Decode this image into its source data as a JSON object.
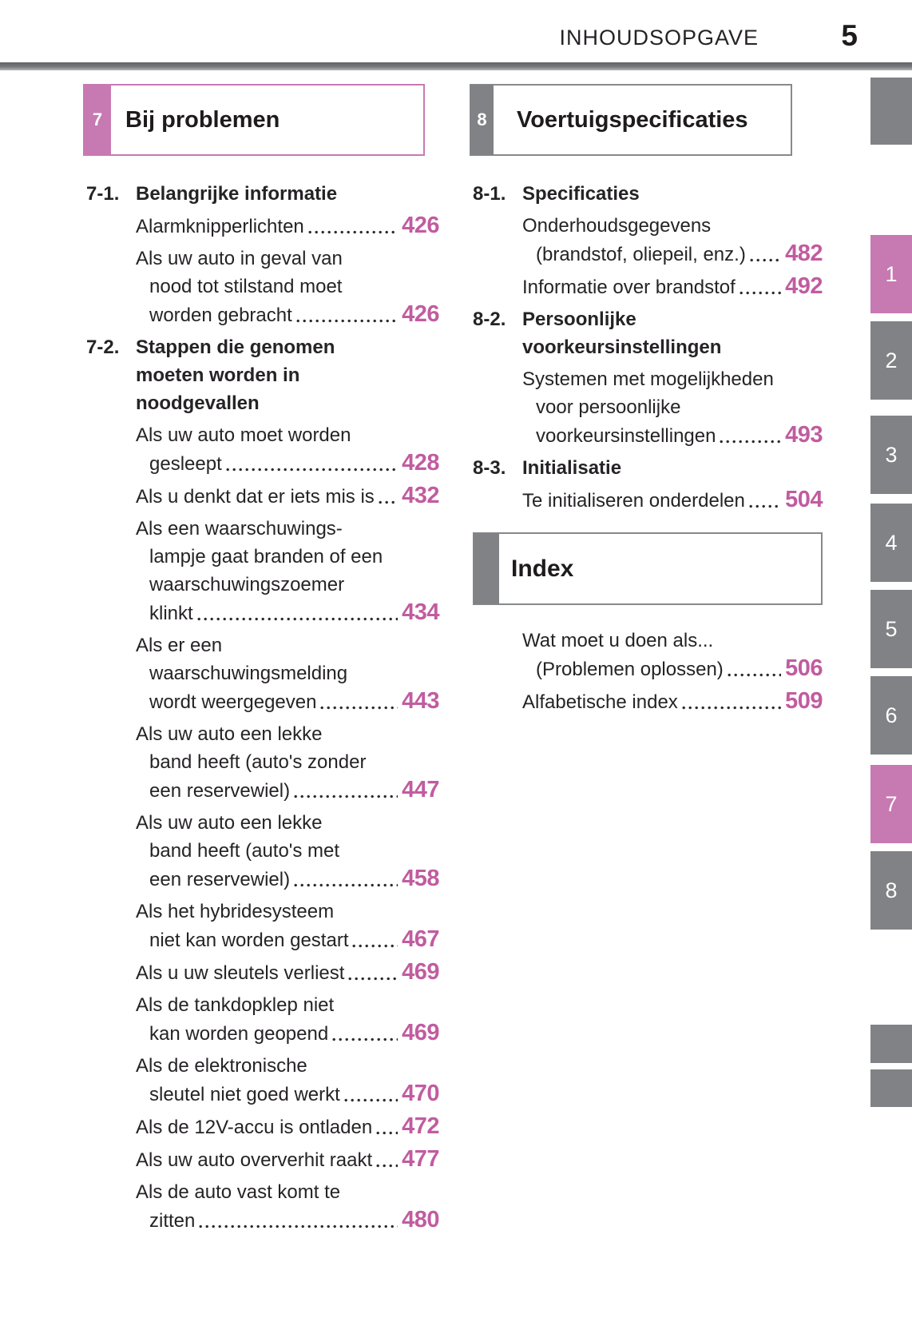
{
  "header": {
    "label": "INHOUDSOPGAVE",
    "page_number": "5"
  },
  "chapter_boxes": {
    "left": {
      "number": "7",
      "title": "Bij problemen",
      "accent": "pink"
    },
    "right": {
      "number": "8",
      "title": "Voertuigspecificaties",
      "accent": "gray"
    }
  },
  "toc": {
    "left_sections": [
      {
        "id": "7-1.",
        "title_lines": [
          "Belangrijke informatie"
        ],
        "entries": [
          {
            "lines": [],
            "last": "Alarmknipperlichten",
            "page": "426"
          },
          {
            "lines": [
              "Als uw auto in geval van",
              "nood tot stilstand moet"
            ],
            "last": "worden gebracht",
            "page": "426"
          }
        ]
      },
      {
        "id": "7-2.",
        "title_lines": [
          "Stappen die genomen",
          "moeten worden in",
          "noodgevallen"
        ],
        "entries": [
          {
            "lines": [
              "Als uw auto moet worden"
            ],
            "last": "gesleept",
            "page": "428"
          },
          {
            "lines": [],
            "last": "Als u denkt dat er iets mis is",
            "page": "432"
          },
          {
            "lines": [
              "Als een waarschuwings-",
              "lampje gaat branden of een",
              "waarschuwingszoemer"
            ],
            "last": "klinkt",
            "page": "434"
          },
          {
            "lines": [
              "Als er een",
              "waarschuwingsmelding"
            ],
            "last": "wordt weergegeven",
            "page": "443"
          },
          {
            "lines": [
              "Als uw auto een lekke",
              "band heeft (auto's zonder"
            ],
            "last": "een reservewiel)",
            "page": "447"
          },
          {
            "lines": [
              "Als uw auto een lekke",
              "band heeft (auto's met"
            ],
            "last": "een reservewiel)",
            "page": "458"
          },
          {
            "lines": [
              "Als het hybridesysteem"
            ],
            "last": "niet kan worden gestart",
            "page": "467"
          },
          {
            "lines": [],
            "last": "Als u uw sleutels verliest",
            "page": "469"
          },
          {
            "lines": [
              "Als de tankdopklep niet"
            ],
            "last": "kan worden geopend",
            "page": "469"
          },
          {
            "lines": [
              "Als de elektronische"
            ],
            "last": "sleutel niet goed werkt",
            "page": "470"
          },
          {
            "lines": [],
            "last": "Als de 12V-accu is ontladen",
            "page": "472"
          },
          {
            "lines": [],
            "last": "Als uw auto oververhit raakt",
            "page": "477"
          },
          {
            "lines": [
              "Als de auto vast komt te"
            ],
            "last": "zitten",
            "page": "480"
          }
        ]
      }
    ],
    "right_sections": [
      {
        "id": "8-1.",
        "title_lines": [
          "Specificaties"
        ],
        "entries": [
          {
            "lines": [
              "Onderhoudsgegevens"
            ],
            "last": "(brandstof, oliepeil, enz.)",
            "page": "482"
          },
          {
            "lines": [],
            "last": "Informatie over brandstof",
            "page": "492"
          }
        ]
      },
      {
        "id": "8-2.",
        "title_lines": [
          "Persoonlijke",
          "voorkeursinstellingen"
        ],
        "entries": [
          {
            "lines": [
              "Systemen met mogelijkheden",
              "voor persoonlijke"
            ],
            "last": "voorkeursinstellingen",
            "page": "493"
          }
        ]
      },
      {
        "id": "8-3.",
        "title_lines": [
          "Initialisatie"
        ],
        "entries": [
          {
            "lines": [],
            "last": "Te initialiseren onderdelen",
            "page": "504"
          }
        ]
      }
    ],
    "index_box_title": "Index",
    "index_entries": [
      {
        "lines": [
          "Wat moet u doen als..."
        ],
        "last": "(Problemen oplossen)",
        "page": "506"
      },
      {
        "lines": [],
        "last": "Alfabetische index",
        "page": "509"
      }
    ]
  },
  "sidebar": {
    "tabs": [
      {
        "label": "1",
        "highlight": true
      },
      {
        "label": "2",
        "highlight": false
      },
      {
        "label": "3",
        "highlight": false
      },
      {
        "label": "4",
        "highlight": false
      },
      {
        "label": "5",
        "highlight": false
      },
      {
        "label": "6",
        "highlight": false
      },
      {
        "label": "7",
        "highlight": true
      },
      {
        "label": "8",
        "highlight": false
      }
    ]
  },
  "colors": {
    "accent_pink": "#c779b2",
    "page_number_pink": "#c15ca0",
    "tab_gray": "#808285",
    "text": "#262326"
  }
}
